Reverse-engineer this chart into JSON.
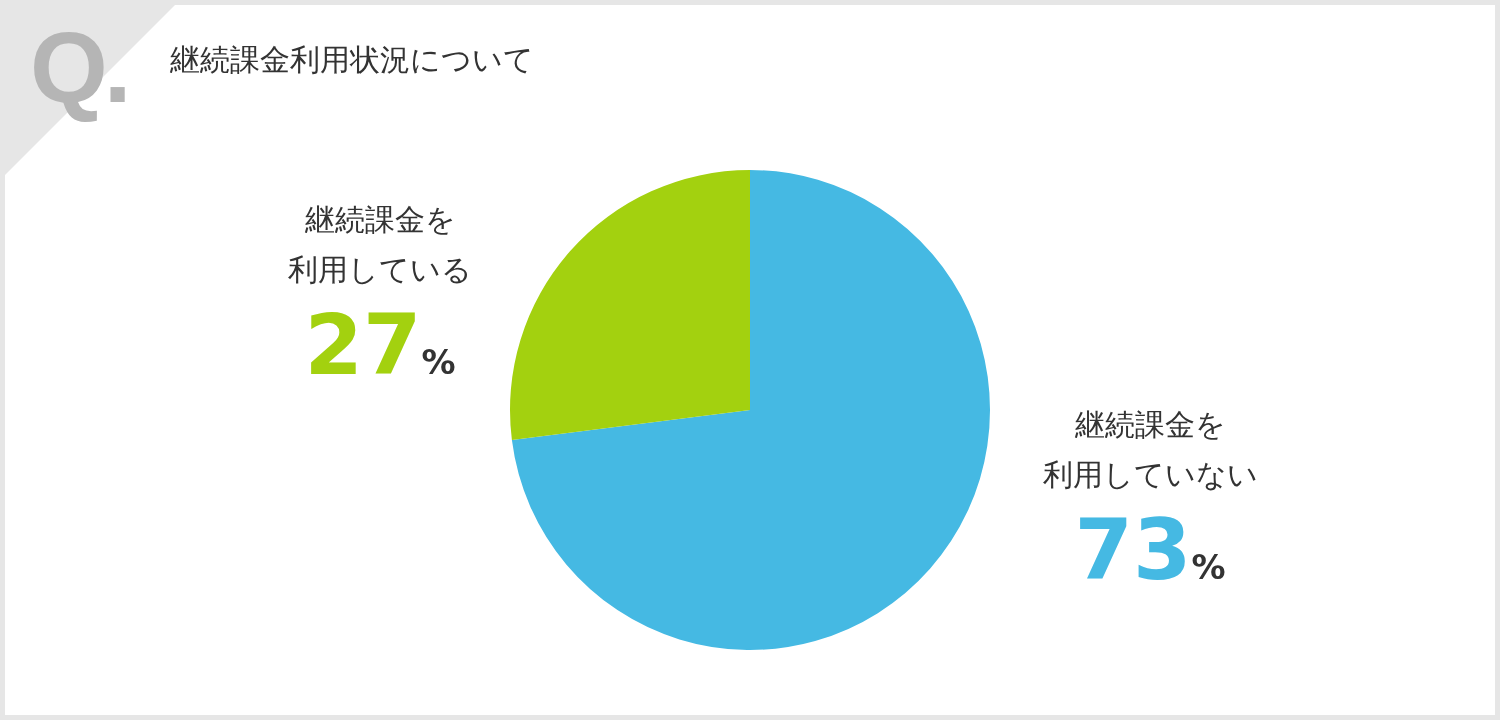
{
  "chart_data": {
    "type": "pie",
    "title": "継続課金利用状況について",
    "categories": [
      "継続課金を利用していない",
      "継続課金を利用している"
    ],
    "values": [
      73,
      27
    ],
    "colors": [
      "#45b9e3",
      "#a3d10f"
    ],
    "value_labels": [
      "73%",
      "27%"
    ],
    "legend": false,
    "annotations": [
      "Q."
    ]
  }
}
